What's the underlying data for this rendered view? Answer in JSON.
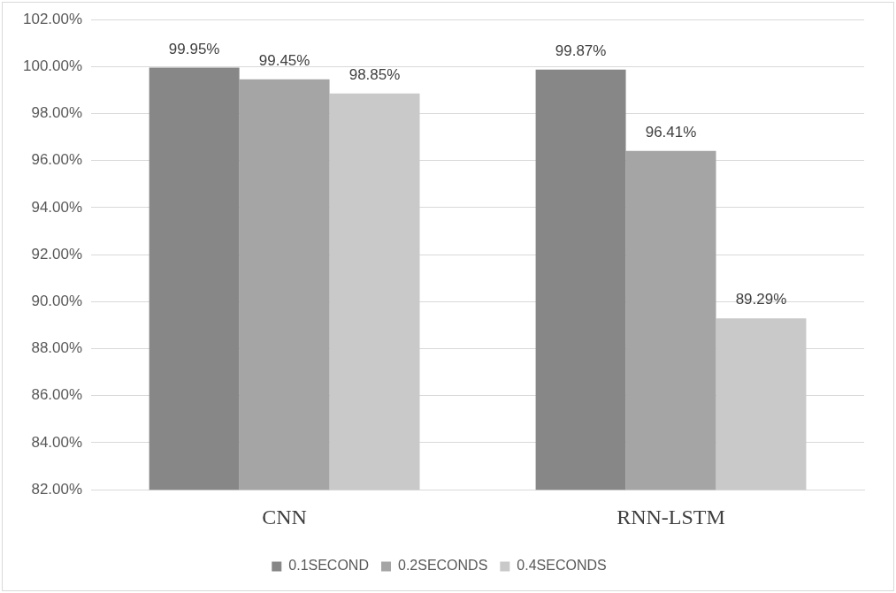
{
  "chart_data": {
    "type": "bar",
    "categories": [
      "CNN",
      "RNN-LSTM"
    ],
    "series": [
      {
        "name": "0.1SECOND",
        "color": "#878787",
        "values": [
          99.95,
          99.87
        ],
        "value_labels": [
          "99.95%",
          "99.87%"
        ]
      },
      {
        "name": "0.2SECONDS",
        "color": "#a5a5a5",
        "values": [
          99.45,
          96.41
        ],
        "value_labels": [
          "99.45%",
          "96.41%"
        ]
      },
      {
        "name": "0.4SECONDS",
        "color": "#c9c9c9",
        "values": [
          98.85,
          89.29
        ],
        "value_labels": [
          "98.85%",
          "89.29%"
        ]
      }
    ],
    "ylim": [
      82,
      102
    ],
    "yticks": [
      {
        "value": 82,
        "label": "82.00%"
      },
      {
        "value": 84,
        "label": "84.00%"
      },
      {
        "value": 86,
        "label": "86.00%"
      },
      {
        "value": 88,
        "label": "88.00%"
      },
      {
        "value": 90,
        "label": "90.00%"
      },
      {
        "value": 92,
        "label": "92.00%"
      },
      {
        "value": 94,
        "label": "94.00%"
      },
      {
        "value": 96,
        "label": "96.00%"
      },
      {
        "value": 98,
        "label": "98.00%"
      },
      {
        "value": 100,
        "label": "100.00%"
      },
      {
        "value": 102,
        "label": "102.00%"
      }
    ],
    "grid": "y",
    "legend": "bottom"
  }
}
